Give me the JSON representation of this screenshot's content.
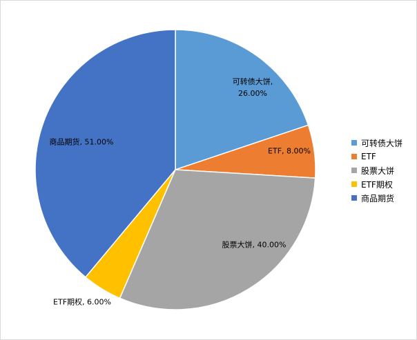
{
  "chart_data": {
    "type": "pie",
    "categories": [
      "可转债大饼",
      "ETF",
      "股票大饼",
      "ETF期权",
      "商品期货"
    ],
    "values": [
      26,
      8,
      40,
      6,
      51
    ],
    "data_labels": [
      "可转债大饼, 26.00%",
      "ETF, 8.00%",
      "股票大饼, 40.00%",
      "ETF期权, 6.00%",
      "商品期货, 51.00%"
    ],
    "colors": [
      "#5B9BD5",
      "#ED7D31",
      "#A5A5A5",
      "#FFC000",
      "#4472C4"
    ],
    "legend_position": "right",
    "start_angle": "top, clockwise"
  }
}
